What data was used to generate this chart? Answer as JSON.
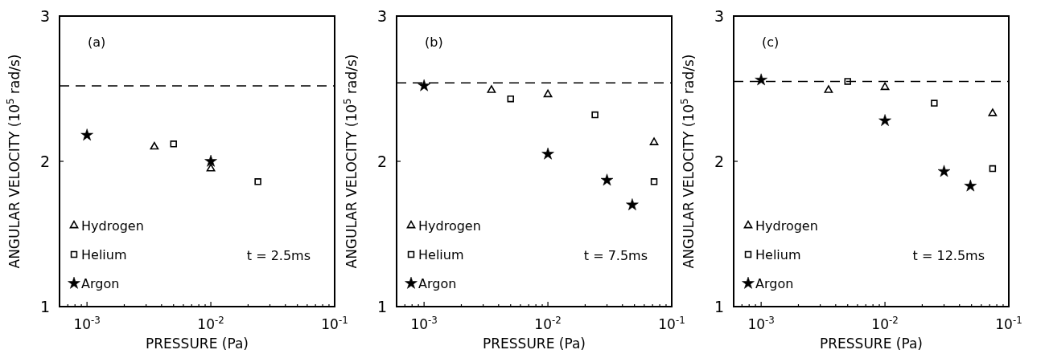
{
  "chart_data": [
    {
      "type": "scatter",
      "xlabel": "PRESSURE (Pa)",
      "ylabel": "ANGULAR VELOCITY (10$^{5}$ rad/s)",
      "log": "x",
      "legend": "bottom left",
      "annotations": [
        "(a)",
        "t = 2.5ms"
      ],
      "xlim": [
        0.0006,
        0.1
      ],
      "ylim": [
        1,
        3
      ],
      "yticks": [
        1,
        2,
        3
      ],
      "xticks": [
        {
          "value": 0.0006,
          "label": null
        },
        {
          "value": 0.0007,
          "label": null
        },
        {
          "value": 0.0008,
          "label": null
        },
        {
          "value": 0.0009,
          "label": null
        },
        {
          "value": 0.001,
          "label": "10$^{-3}$"
        },
        {
          "value": 0.002,
          "label": null
        },
        {
          "value": 0.003,
          "label": null
        },
        {
          "value": 0.004,
          "label": null
        },
        {
          "value": 0.005,
          "label": null
        },
        {
          "value": 0.006,
          "label": null
        },
        {
          "value": 0.007,
          "label": null
        },
        {
          "value": 0.008,
          "label": null
        },
        {
          "value": 0.009,
          "label": null
        },
        {
          "value": 0.01,
          "label": "10$^{-2}$"
        },
        {
          "value": 0.02,
          "label": null
        },
        {
          "value": 0.03,
          "label": null
        },
        {
          "value": 0.04,
          "label": null
        },
        {
          "value": 0.05,
          "label": null
        },
        {
          "value": 0.06,
          "label": null
        },
        {
          "value": 0.07,
          "label": null
        },
        {
          "value": 0.08,
          "label": null
        },
        {
          "value": 0.09,
          "label": null
        },
        {
          "value": 0.1,
          "label": "10$^{-1}$"
        }
      ],
      "ref_lines": [
        {
          "axis": "y",
          "value": 2.52,
          "line_style": "dashed",
          "color": "#000000"
        }
      ],
      "series": [
        {
          "name": "Hydrogen",
          "color": "#000000",
          "marker": "triangle",
          "x": [
            0.0035,
            0.01
          ],
          "values": [
            2.1,
            1.95
          ]
        },
        {
          "name": "Helium",
          "color": "#000000",
          "marker": "square",
          "x": [
            0.005,
            0.024
          ],
          "values": [
            2.12,
            1.86
          ]
        },
        {
          "name": "Argon",
          "color": "#000000",
          "marker": "star",
          "x": [
            0.001,
            0.01
          ],
          "values": [
            2.18,
            2.0
          ]
        }
      ]
    },
    {
      "type": "scatter",
      "xlabel": "PRESSURE (Pa)",
      "ylabel": "ANGULAR VELOCITY (10$^{5}$ rad/s)",
      "log": "x",
      "legend": "bottom left",
      "annotations": [
        "(b)",
        "t = 7.5ms"
      ],
      "xlim": [
        0.0006,
        0.1
      ],
      "ylim": [
        1,
        3
      ],
      "yticks": [
        1,
        2,
        3
      ],
      "xticks": [
        {
          "value": 0.0006,
          "label": null
        },
        {
          "value": 0.0007,
          "label": null
        },
        {
          "value": 0.0008,
          "label": null
        },
        {
          "value": 0.0009,
          "label": null
        },
        {
          "value": 0.001,
          "label": "10$^{-3}$"
        },
        {
          "value": 0.002,
          "label": null
        },
        {
          "value": 0.003,
          "label": null
        },
        {
          "value": 0.004,
          "label": null
        },
        {
          "value": 0.005,
          "label": null
        },
        {
          "value": 0.006,
          "label": null
        },
        {
          "value": 0.007,
          "label": null
        },
        {
          "value": 0.008,
          "label": null
        },
        {
          "value": 0.009,
          "label": null
        },
        {
          "value": 0.01,
          "label": "10$^{-2}$"
        },
        {
          "value": 0.02,
          "label": null
        },
        {
          "value": 0.03,
          "label": null
        },
        {
          "value": 0.04,
          "label": null
        },
        {
          "value": 0.05,
          "label": null
        },
        {
          "value": 0.06,
          "label": null
        },
        {
          "value": 0.07,
          "label": null
        },
        {
          "value": 0.08,
          "label": null
        },
        {
          "value": 0.09,
          "label": null
        },
        {
          "value": 0.1,
          "label": "10$^{-1}$"
        }
      ],
      "ref_lines": [
        {
          "axis": "y",
          "value": 2.54,
          "line_style": "dashed",
          "color": "#000000"
        }
      ],
      "series": [
        {
          "name": "Hydrogen",
          "color": "#000000",
          "marker": "triangle",
          "x": [
            0.0035,
            0.01,
            0.072
          ],
          "values": [
            2.49,
            2.46,
            2.13
          ]
        },
        {
          "name": "Helium",
          "color": "#000000",
          "marker": "square",
          "x": [
            0.005,
            0.024,
            0.072
          ],
          "values": [
            2.43,
            2.32,
            1.86
          ]
        },
        {
          "name": "Argon",
          "color": "#000000",
          "marker": "star",
          "x": [
            0.001,
            0.01,
            0.03,
            0.048
          ],
          "values": [
            2.52,
            2.05,
            1.87,
            1.7
          ]
        }
      ]
    },
    {
      "type": "scatter",
      "xlabel": "PRESSURE (Pa)",
      "ylabel": "ANGULAR VELOCITY (10$^{5}$ rad/s)",
      "log": "x",
      "legend": "bottom left",
      "annotations": [
        "(c)",
        "t = 12.5ms"
      ],
      "xlim": [
        0.0006,
        0.1
      ],
      "ylim": [
        1,
        3
      ],
      "yticks": [
        1,
        2,
        3
      ],
      "xticks": [
        {
          "value": 0.0006,
          "label": null
        },
        {
          "value": 0.0007,
          "label": null
        },
        {
          "value": 0.0008,
          "label": null
        },
        {
          "value": 0.0009,
          "label": null
        },
        {
          "value": 0.001,
          "label": "10$^{-3}$"
        },
        {
          "value": 0.002,
          "label": null
        },
        {
          "value": 0.003,
          "label": null
        },
        {
          "value": 0.004,
          "label": null
        },
        {
          "value": 0.005,
          "label": null
        },
        {
          "value": 0.006,
          "label": null
        },
        {
          "value": 0.007,
          "label": null
        },
        {
          "value": 0.008,
          "label": null
        },
        {
          "value": 0.009,
          "label": null
        },
        {
          "value": 0.01,
          "label": "10$^{-2}$"
        },
        {
          "value": 0.02,
          "label": null
        },
        {
          "value": 0.03,
          "label": null
        },
        {
          "value": 0.04,
          "label": null
        },
        {
          "value": 0.05,
          "label": null
        },
        {
          "value": 0.06,
          "label": null
        },
        {
          "value": 0.07,
          "label": null
        },
        {
          "value": 0.08,
          "label": null
        },
        {
          "value": 0.09,
          "label": null
        },
        {
          "value": 0.1,
          "label": "10$^{-1}$"
        }
      ],
      "ref_lines": [
        {
          "axis": "y",
          "value": 2.55,
          "line_style": "dashed",
          "color": "#000000"
        }
      ],
      "series": [
        {
          "name": "Hydrogen",
          "color": "#000000",
          "marker": "triangle",
          "x": [
            0.0035,
            0.01,
            0.074
          ],
          "values": [
            2.49,
            2.51,
            2.33
          ]
        },
        {
          "name": "Helium",
          "color": "#000000",
          "marker": "square",
          "x": [
            0.005,
            0.025,
            0.074
          ],
          "values": [
            2.55,
            2.4,
            1.95
          ]
        },
        {
          "name": "Argon",
          "color": "#000000",
          "marker": "star",
          "x": [
            0.001,
            0.01,
            0.03,
            0.049
          ],
          "values": [
            2.56,
            2.28,
            1.93,
            1.83
          ]
        }
      ]
    }
  ]
}
